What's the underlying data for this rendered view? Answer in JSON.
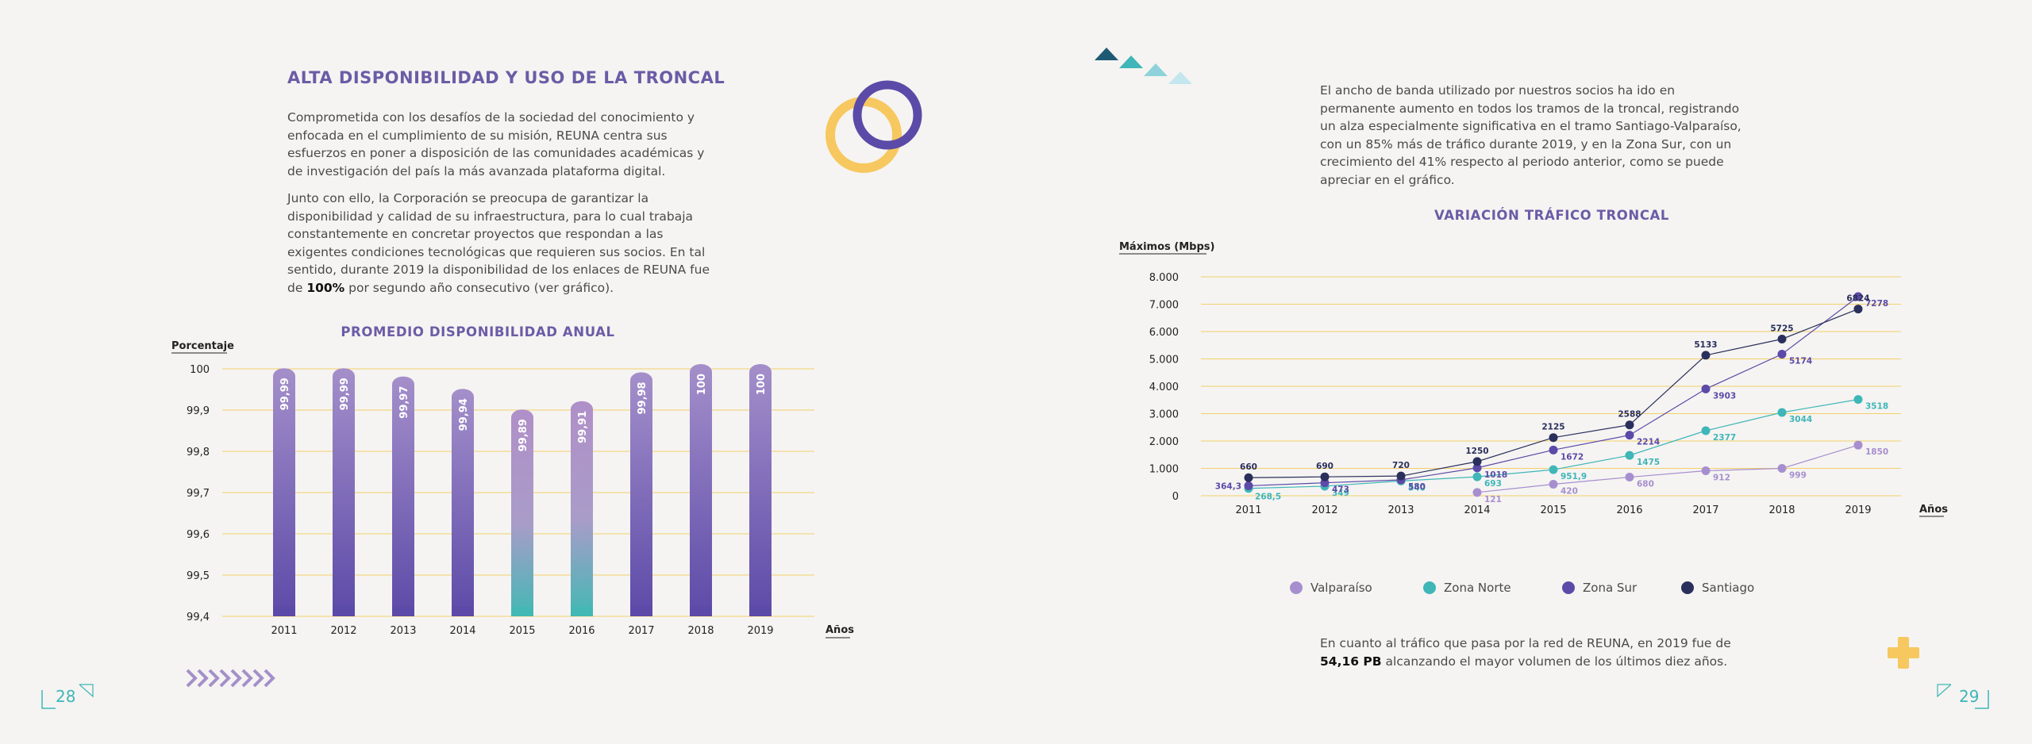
{
  "left_page": {
    "heading": "ALTA DISPONIBILIDAD Y USO DE LA TRONCAL",
    "paragraph1": "Comprometida con los desafíos de la sociedad del conocimiento y enfocada en el cumplimiento de su misión, REUNA centra sus esfuerzos en poner a disposición de las comunidades académicas y de investigación del país la más avanzada plataforma digital.",
    "paragraph2_before": "Junto con ello, la Corporación se preocupa de garantizar la disponibilidad y calidad de su infraestructura, para lo cual trabaja constantemente en concretar proyectos que respondan a las exigentes condiciones tecnológicas que requieren sus socios. En tal sentido, durante 2019 la disponibilidad de los enlaces de REUNA fue de ",
    "paragraph2_bold": "100%",
    "paragraph2_after": " por segundo año consecutivo (ver gráfico).",
    "page_number": "28"
  },
  "right_page": {
    "intro": "El ancho de banda utilizado por nuestros socios ha ido en permanente aumento en todos los tramos de la troncal, registrando un alza especialmente significativa en el tramo Santiago-Valparaíso, con un 85% más de tráfico durante 2019, y en la Zona Sur, con un crecimiento del 41% respecto al periodo anterior, como se puede apreciar en el gráfico.",
    "footer_before": "En cuanto al tráfico que pasa por la red de REUNA, en 2019 fue de ",
    "footer_bold": "54,16 PB",
    "footer_after": " alcanzando el mayor volumen de los últimos diez años.",
    "page_number": "29"
  },
  "colors": {
    "purple": "#6b5ca6",
    "teal": "#3fb6b8",
    "yellow": "#f6c85f",
    "navy": "#2a2f5c",
    "lavender": "#a78fcf"
  },
  "chart_data": [
    {
      "type": "bar",
      "title": "PROMEDIO DISPONIBILIDAD ANUAL",
      "ylabel": "Porcentaje",
      "xlabel": "Años",
      "categories": [
        "2011",
        "2012",
        "2013",
        "2014",
        "2015",
        "2016",
        "2017",
        "2018",
        "2019"
      ],
      "values": [
        99.99,
        99.99,
        99.97,
        99.94,
        99.89,
        99.91,
        99.98,
        100,
        100
      ],
      "value_labels": [
        "99,99",
        "99,99",
        "99,97",
        "99,94",
        "99,89",
        "99,91",
        "99,98",
        "100",
        "100"
      ],
      "ylim": [
        99.4,
        100
      ],
      "yticks": [
        99.4,
        99.5,
        99.6,
        99.7,
        99.8,
        99.9,
        100
      ],
      "ytick_labels": [
        "99,4",
        "99,5",
        "99,6",
        "99,7",
        "99,8",
        "99,9",
        "100"
      ],
      "grid": true
    },
    {
      "type": "line",
      "title": "VARIACIÓN TRÁFICO TRONCAL",
      "ylabel": "Máximos (Mbps)",
      "xlabel": "Años",
      "categories": [
        "2011",
        "2012",
        "2013",
        "2014",
        "2015",
        "2016",
        "2017",
        "2018",
        "2019"
      ],
      "ylim": [
        0,
        8000
      ],
      "yticks": [
        0,
        1000,
        2000,
        3000,
        4000,
        5000,
        6000,
        7000,
        8000
      ],
      "ytick_labels": [
        "0",
        "1.000",
        "2.000",
        "3.000",
        "4.000",
        "5.000",
        "6.000",
        "7.000",
        "8.000"
      ],
      "grid": true,
      "legend_position": "bottom",
      "series": [
        {
          "name": "Valparaíso",
          "color": "#a78fcf",
          "values": [
            null,
            null,
            null,
            121,
            420,
            680,
            912,
            999,
            1850
          ],
          "labels": [
            "",
            "",
            "",
            "121",
            "420",
            "680",
            "912",
            "999",
            "1850"
          ]
        },
        {
          "name": "Zona Norte",
          "color": "#3fb6b8",
          "values": [
            268.5,
            349,
            540,
            693,
            951.9,
            1475,
            2377,
            3044,
            3518
          ],
          "labels": [
            "268,5",
            "349",
            "540",
            "693",
            "951,9",
            "1475",
            "2377",
            "3044",
            "3518"
          ]
        },
        {
          "name": "Zona Sur",
          "color": "#5c4aa8",
          "values": [
            364.3,
            473,
            580,
            1018,
            1672,
            2214,
            3903,
            5174,
            7278
          ],
          "labels": [
            "364,3",
            "473",
            "580",
            "1018",
            "1672",
            "2214",
            "3903",
            "5174",
            "7278"
          ]
        },
        {
          "name": "Santiago",
          "color": "#2a2f5c",
          "values": [
            660,
            690,
            720,
            1250,
            2125,
            2588,
            5133,
            5725,
            6824
          ],
          "labels": [
            "660",
            "690",
            "720",
            "1250",
            "2125",
            "2588",
            "5133",
            "5725",
            "6824"
          ]
        }
      ]
    }
  ]
}
